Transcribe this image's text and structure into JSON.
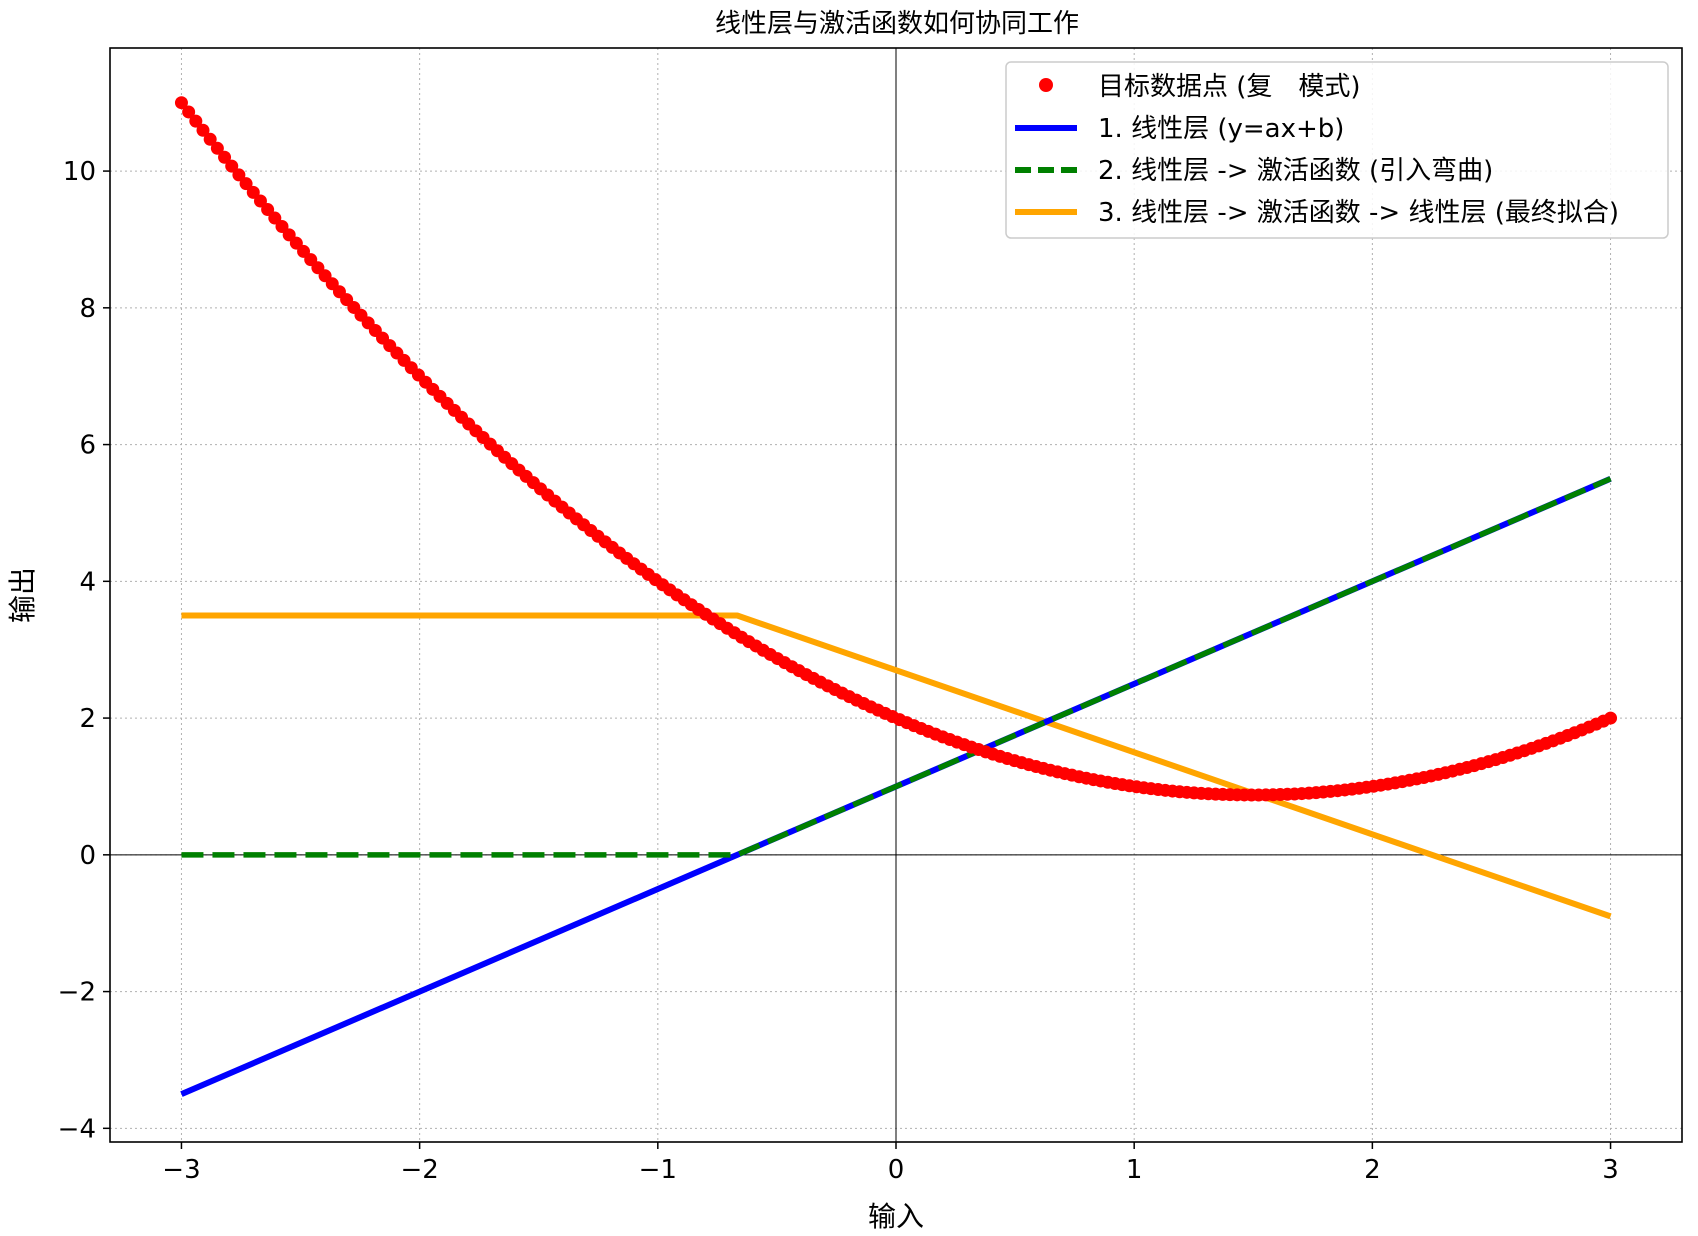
{
  "chart_data": {
    "type": "line",
    "title": "线性层与激活函数如何协同工作",
    "xlabel": "输入",
    "ylabel": "输出",
    "xlim": [
      -3.3,
      3.3
    ],
    "ylim": [
      -4.2,
      11.8
    ],
    "xticks": [
      -3,
      -2,
      -1,
      0,
      1,
      2,
      3
    ],
    "xtick_labels": [
      "−3",
      "−2",
      "−1",
      "0",
      "1",
      "2",
      "3"
    ],
    "yticks": [
      -4,
      -2,
      0,
      2,
      4,
      6,
      8,
      10
    ],
    "ytick_labels": [
      "−4",
      "−2",
      "0",
      "2",
      "4",
      "6",
      "8",
      "10"
    ],
    "grid": true,
    "grid_style": "dotted",
    "reference_lines": {
      "x": 0,
      "y": 0
    },
    "legend_position": "top-right",
    "series": [
      {
        "name": "目标数据点 (复　模式)",
        "kind": "scatter",
        "color": "#ff0000",
        "x_range": [
          -3,
          3
        ],
        "num_points": 200,
        "formula": "y = 0.5*x^2 - 1.5*x + 2",
        "endpoints": [
          [
            -3,
            11
          ],
          [
            0,
            2
          ],
          [
            1.5,
            0.875
          ],
          [
            3,
            2
          ]
        ]
      },
      {
        "name": "1. 线性层 (y=ax+b)",
        "kind": "line",
        "color": "#0000ff",
        "style": "solid",
        "x": [
          -3,
          3
        ],
        "y": [
          -3.5,
          5.5
        ]
      },
      {
        "name": "2. 线性层 -> 激活函数 (引入弯曲)",
        "kind": "line",
        "color": "#008000",
        "style": "dashed",
        "x": [
          -3,
          -0.6667,
          3
        ],
        "y": [
          0,
          0,
          5.5
        ]
      },
      {
        "name": "3. 线性层 -> 激活函数 -> 线性层 (最终拟合)",
        "kind": "line",
        "color": "#ffa500",
        "style": "solid",
        "x": [
          -3,
          -0.6667,
          3
        ],
        "y": [
          3.5,
          3.5,
          -0.9
        ]
      }
    ]
  }
}
